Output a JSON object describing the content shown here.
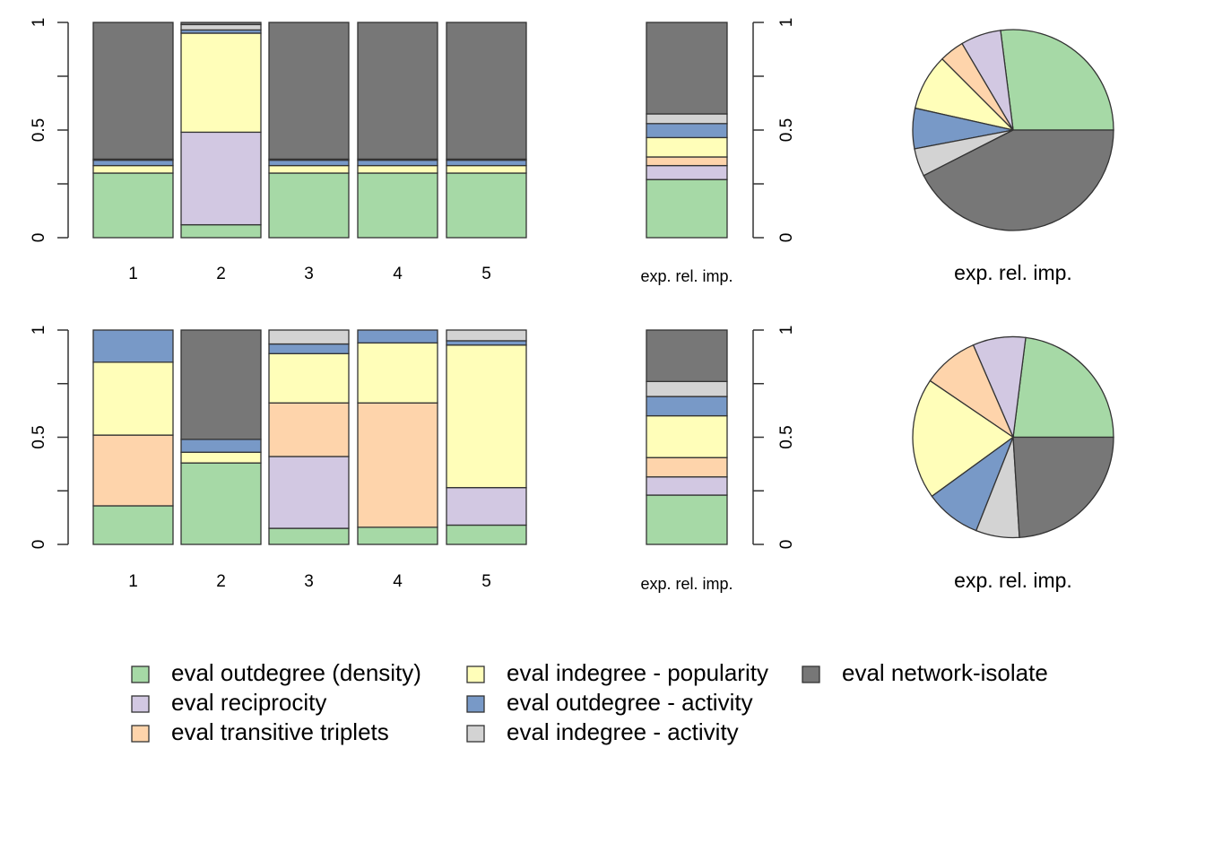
{
  "chart_data": {
    "type": "bar",
    "subtype": "stacked-100-and-pie",
    "legend": {
      "placement": "bottom",
      "entries": [
        {
          "name": "eval outdegree (density)",
          "color": "#a6d9a6"
        },
        {
          "name": "eval reciprocity",
          "color": "#d2c8e2"
        },
        {
          "name": "eval transitive triplets",
          "color": "#fed4ab"
        },
        {
          "name": "eval indegree - popularity",
          "color": "#fffeb9"
        },
        {
          "name": "eval outdegree - activity",
          "color": "#7899c7"
        },
        {
          "name": "eval indegree - activity",
          "color": "#d3d3d3"
        },
        {
          "name": "eval network-isolate",
          "color": "#777777"
        }
      ]
    },
    "ylim": [
      0,
      1
    ],
    "yticks": [
      "0",
      "0.5",
      "1"
    ],
    "exp_label": "exp. rel. imp.",
    "rows": [
      {
        "categories": [
          "1",
          "2",
          "3",
          "4",
          "5"
        ],
        "bars": [
          [
            0.3,
            0.0,
            0.0,
            0.035,
            0.025,
            0.005,
            0.635
          ],
          [
            0.06,
            0.43,
            0.0,
            0.46,
            0.015,
            0.025,
            0.01
          ],
          [
            0.3,
            0.0,
            0.0,
            0.035,
            0.025,
            0.005,
            0.635
          ],
          [
            0.3,
            0.0,
            0.0,
            0.035,
            0.025,
            0.005,
            0.635
          ],
          [
            0.3,
            0.0,
            0.0,
            0.035,
            0.025,
            0.005,
            0.635
          ]
        ],
        "expected": [
          0.27,
          0.065,
          0.04,
          0.09,
          0.065,
          0.045,
          0.425
        ]
      },
      {
        "categories": [
          "1",
          "2",
          "3",
          "4",
          "5"
        ],
        "bars": [
          [
            0.18,
            0.0,
            0.33,
            0.34,
            0.15,
            0.0,
            0.0
          ],
          [
            0.38,
            0.0,
            0.0,
            0.05,
            0.06,
            0.0,
            0.51
          ],
          [
            0.075,
            0.335,
            0.25,
            0.23,
            0.045,
            0.065,
            0.0
          ],
          [
            0.08,
            0.0,
            0.58,
            0.28,
            0.06,
            0.0,
            0.0
          ],
          [
            0.09,
            0.175,
            0.0,
            0.665,
            0.02,
            0.05,
            0.0
          ]
        ],
        "expected": [
          0.23,
          0.085,
          0.09,
          0.195,
          0.09,
          0.07,
          0.24
        ]
      }
    ]
  }
}
